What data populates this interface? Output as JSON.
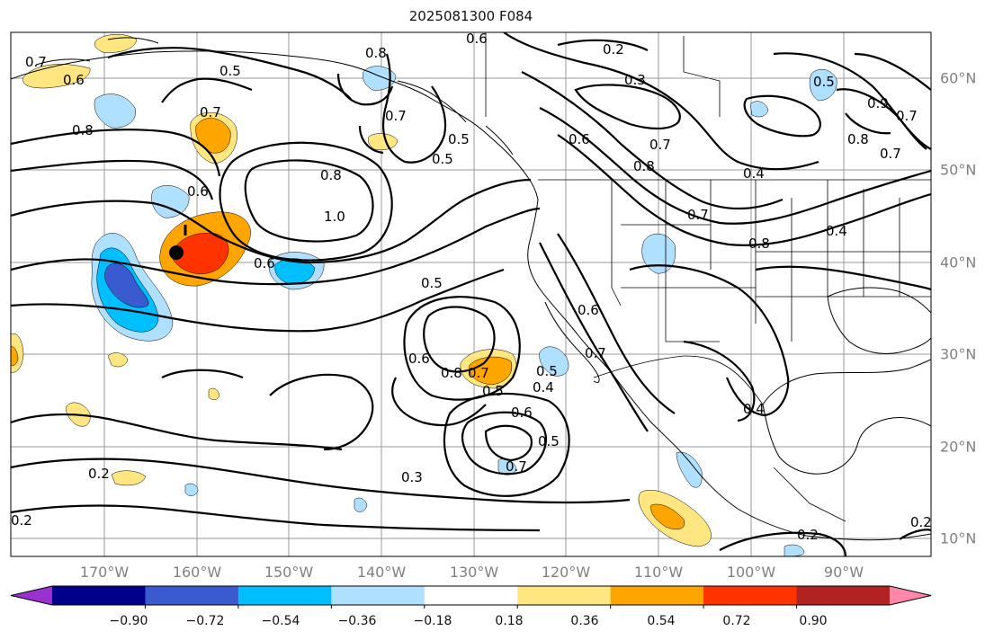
{
  "title": "2025081300 F084",
  "lon_labels": [
    "170°W",
    "160°W",
    "150°W",
    "140°W",
    "130°W",
    "120°W",
    "110°W",
    "100°W",
    "90°W"
  ],
  "lat_labels": [
    "60°N",
    "50°N",
    "40°N",
    "30°N",
    "20°N",
    "10°N"
  ],
  "colorbar": {
    "ticks": [
      "−0.90",
      "−0.72",
      "−0.54",
      "−0.36",
      "−0.18",
      "0.18",
      "0.36",
      "0.54",
      "0.72",
      "0.90"
    ],
    "colors": [
      "#9b30d0",
      "#00008b",
      "#3a5bd0",
      "#00bfff",
      "#b0e0ff",
      "#ffffff",
      "#ffe680",
      "#ffa500",
      "#ff3300",
      "#b22222",
      "#ff88aa"
    ]
  },
  "contour_labels": [
    "0.7",
    "0.6",
    "0.5",
    "0.8",
    "0.6",
    "0.2",
    "0.3",
    "0.5",
    "0.7",
    "0.7",
    "0.8",
    "0.8",
    "0.6",
    "1.0",
    "0.6",
    "0.5",
    "0.6",
    "0.8",
    "0.7",
    "0.5",
    "0.6",
    "0.4",
    "0.7",
    "0.5",
    "0.3",
    "0.2",
    "0.2",
    "0.6",
    "0.7",
    "0.5",
    "0.4",
    "0.7",
    "0.8",
    "0.4",
    "0.4",
    "0.2",
    "0.2",
    "0.7",
    "0.9",
    "0.8",
    "0.7",
    "0.5",
    "0.6",
    "0.8",
    "0.7",
    "0.5"
  ],
  "marker": "storm-center"
}
